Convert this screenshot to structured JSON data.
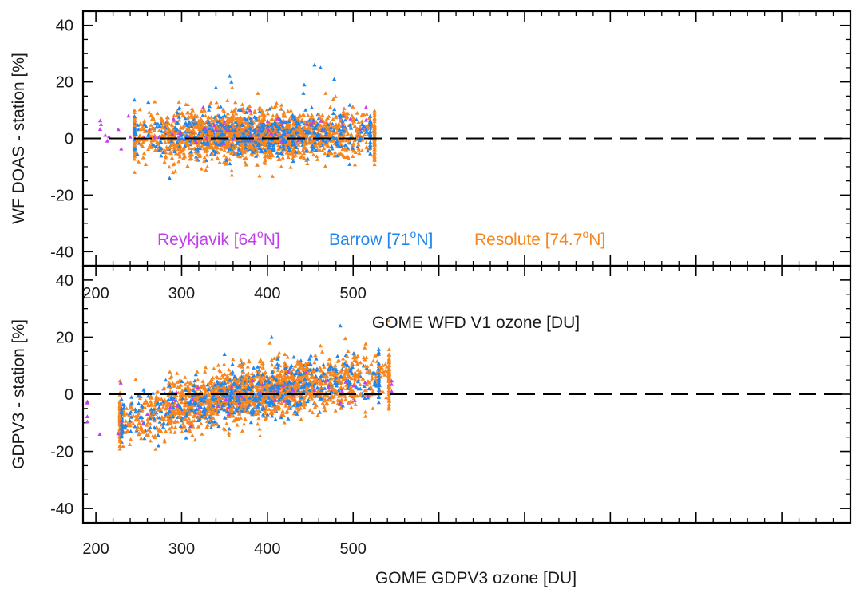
{
  "colors": {
    "reykjavik": "#c040ea",
    "barrow": "#1f86f0",
    "resolute": "#f7861f",
    "axis": "#000000"
  },
  "legend": [
    {
      "prefix": "Reykjavik [64",
      "sup": "o",
      "suffix": "N]",
      "color": "#c040ea"
    },
    {
      "prefix": "Barrow [71",
      "sup": "o",
      "suffix": "N]",
      "color": "#1f86f0"
    },
    {
      "prefix": "Resolute [74.7",
      "sup": "o",
      "suffix": "N]",
      "color": "#f7861f"
    }
  ],
  "chart_data": [
    {
      "type": "scatter",
      "title": "",
      "xlabel": "GOME WFD V1 ozone [DU]",
      "ylabel": "WF DOAS - station [%]",
      "xlim": [
        185,
        1080
      ],
      "ylim": [
        -45,
        45
      ],
      "xticks": [
        200,
        300,
        400,
        500
      ],
      "yticks": [
        -40,
        -20,
        0,
        20,
        40
      ],
      "reference_line": {
        "y": 0,
        "style": "dashed"
      },
      "series": [
        {
          "name": "Reykjavik [64°N]",
          "color": "#c040ea",
          "n_points": 60,
          "x_range": [
            205,
            515
          ],
          "mean": 2,
          "spread": 3.5,
          "outliers": [
            [
              206,
              5
            ],
            [
              238,
              8
            ],
            [
              240,
              0.5
            ],
            [
              353,
              3
            ],
            [
              515,
              11
            ],
            [
              497,
              7
            ],
            [
              450,
              5
            ]
          ]
        },
        {
          "name": "Barrow [71°N]",
          "color": "#1f86f0",
          "n_points": 650,
          "x_range": [
            245,
            520
          ],
          "mean": 1.5,
          "spread": 3.8,
          "outliers": [
            [
              356,
              22
            ],
            [
              358,
              20
            ],
            [
              455,
              26
            ],
            [
              462,
              25
            ],
            [
              478,
              21
            ],
            [
              443,
              19
            ],
            [
              286,
              -14
            ],
            [
              340,
              18
            ],
            [
              442,
              16
            ]
          ]
        },
        {
          "name": "Resolute [74.7°N]",
          "color": "#f7861f",
          "n_points": 1900,
          "x_range": [
            245,
            525
          ],
          "mean": 1,
          "spread": 4.2,
          "outliers": [
            [
              359,
              18
            ],
            [
              468,
              16
            ],
            [
              477,
              14
            ],
            [
              389,
              16
            ],
            [
              305,
              12
            ],
            [
              290,
              -12
            ],
            [
              330,
              -10
            ]
          ]
        }
      ]
    },
    {
      "type": "scatter",
      "title": "",
      "xlabel": "GOME GDPV3 ozone [DU]",
      "ylabel": "GDPV3 - station [%]",
      "xlim": [
        185,
        1080
      ],
      "ylim": [
        -45,
        45
      ],
      "xticks": [
        200,
        300,
        400,
        500
      ],
      "yticks": [
        -40,
        -20,
        0,
        20,
        40
      ],
      "reference_line": {
        "y": 0,
        "style": "dashed"
      },
      "series": [
        {
          "name": "Reykjavik [64°N]",
          "color": "#c040ea",
          "n_points": 60,
          "x_range": [
            190,
            545
          ],
          "trend": [
            [
              230,
              -9
            ],
            [
              300,
              -4
            ],
            [
              400,
              1
            ],
            [
              480,
              4
            ],
            [
              540,
              5
            ]
          ],
          "spread": 3.5,
          "outliers": [
            [
              190,
              -3
            ],
            [
              229,
              4
            ],
            [
              545,
              1
            ],
            [
              495,
              -3
            ],
            [
              485,
              -3
            ]
          ]
        },
        {
          "name": "Barrow [71°N]",
          "color": "#1f86f0",
          "n_points": 650,
          "x_range": [
            230,
            530
          ],
          "trend": [
            [
              230,
              -9
            ],
            [
              300,
              -4
            ],
            [
              400,
              1
            ],
            [
              480,
              4
            ],
            [
              530,
              5
            ]
          ],
          "spread": 4.5,
          "outliers": [
            [
              485,
              24
            ],
            [
              405,
              20
            ],
            [
              350,
              14
            ],
            [
              273,
              -18
            ],
            [
              235,
              -11
            ]
          ]
        },
        {
          "name": "Resolute [74.7°N]",
          "color": "#f7861f",
          "n_points": 1900,
          "x_range": [
            228,
            542
          ],
          "trend": [
            [
              228,
              -10
            ],
            [
              300,
              -4
            ],
            [
              400,
              1.5
            ],
            [
              480,
              4
            ],
            [
              540,
              6
            ]
          ],
          "spread": 4.6,
          "outliers": [
            [
              403,
              18
            ],
            [
              462,
              17
            ],
            [
              540,
              8
            ],
            [
              280,
              -16
            ],
            [
              250,
              -14
            ]
          ]
        }
      ]
    }
  ]
}
